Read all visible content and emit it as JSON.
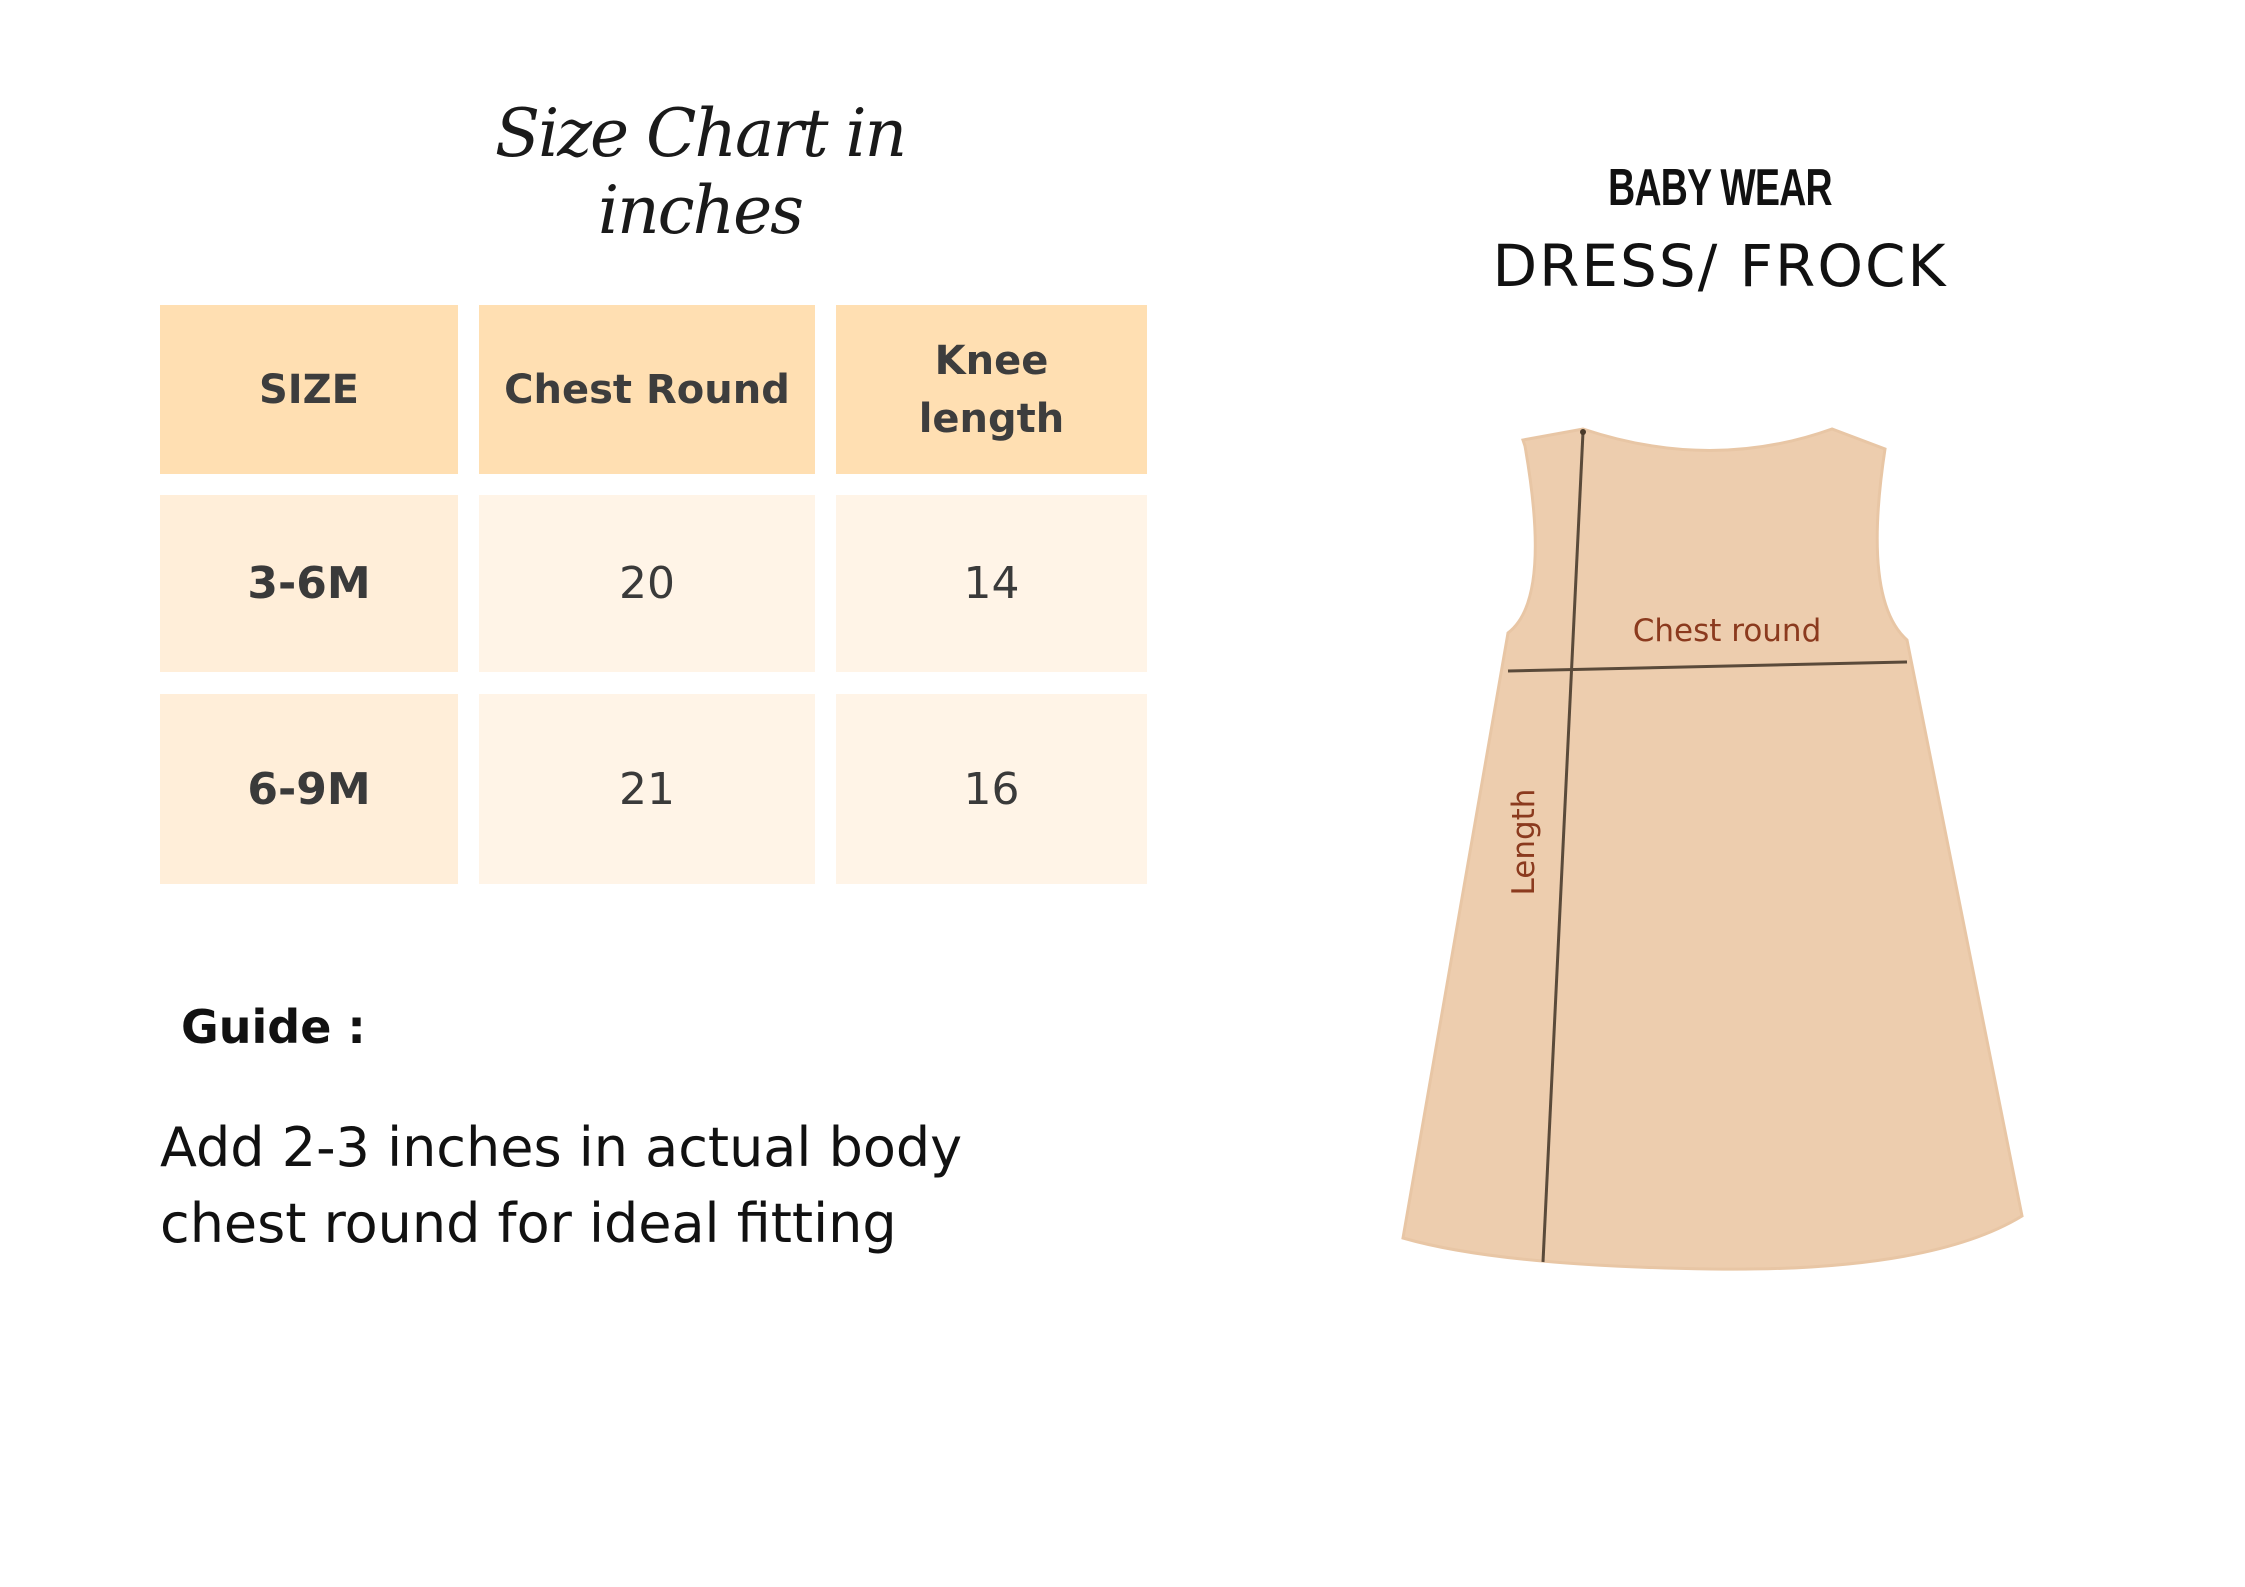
{
  "title": "Size Chart in inches",
  "table": {
    "headers": [
      "SIZE",
      "Chest Round",
      "Knee length"
    ],
    "rows": [
      [
        "3-6M",
        "20",
        "14"
      ],
      [
        "6-9M",
        "21",
        "16"
      ]
    ]
  },
  "guide": {
    "heading": "Guide :",
    "text": "Add 2-3 inches in actual body chest round for ideal fitting"
  },
  "product": {
    "category": "BABY WEAR",
    "name": "DRESS/ FROCK"
  },
  "diagram": {
    "chest_label": "Chest round",
    "length_label": "Length"
  },
  "colors": {
    "header_bg": "#FFDFB2",
    "size_col_bg": "#FFEED9",
    "value_bg": "#FFF4E7",
    "dress_fill": "#EDCDAE",
    "label_color": "#8B3A1E"
  }
}
